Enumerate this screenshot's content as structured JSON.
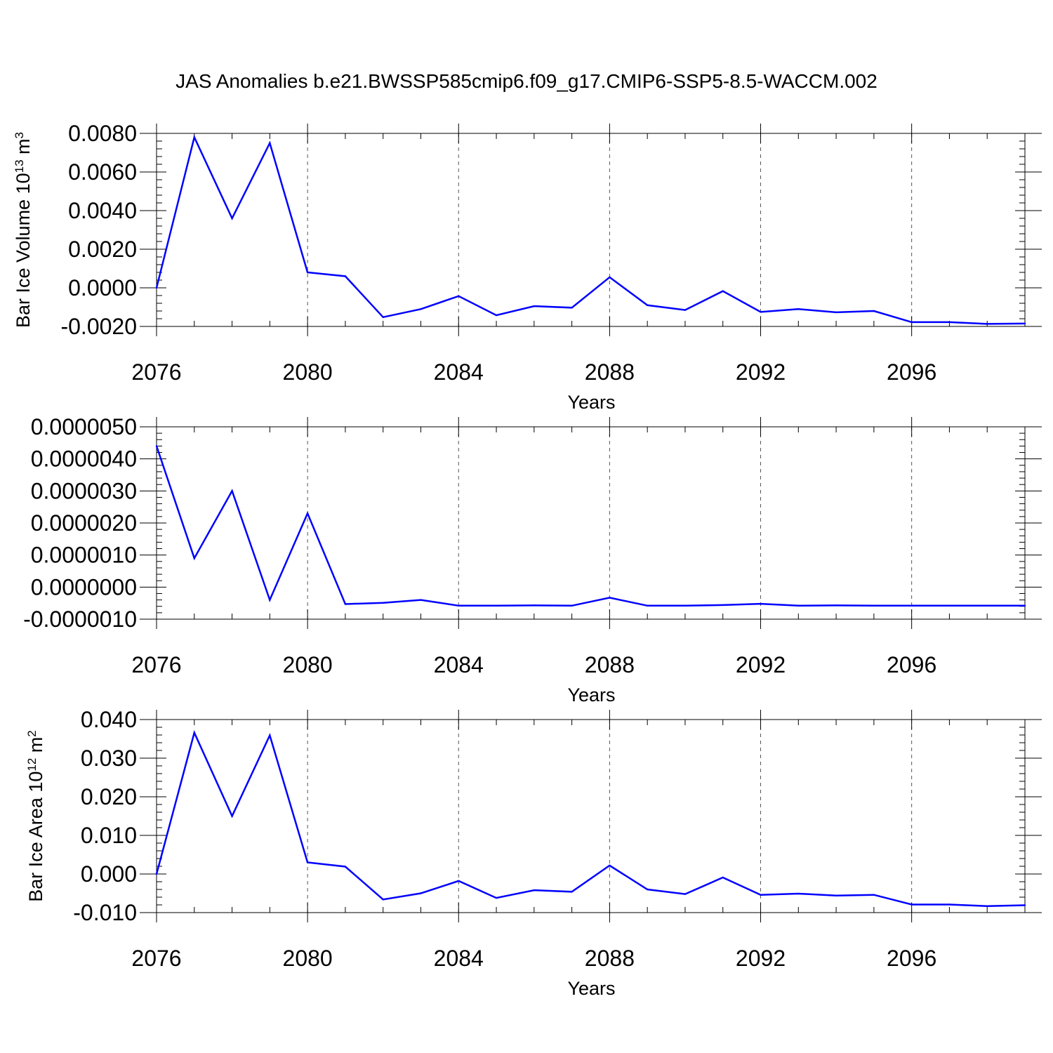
{
  "title": "JAS Anomalies b.e21.BWSSP585cmip6.f09_g17.CMIP6-SSP5-8.5-WACCM.002",
  "chart_data": [
    {
      "type": "line",
      "title": "",
      "xlabel": "Years",
      "ylabel": {
        "text": "Bar Ice Volume 10",
        "exp": "13",
        "unit": " m",
        "unit_exp": "3"
      },
      "xlim": [
        2076,
        2099
      ],
      "ylim": [
        -0.002,
        0.008
      ],
      "grid": "dashed vertical lines at major x ticks",
      "x_ticks": [
        2076,
        2080,
        2084,
        2088,
        2092,
        2096
      ],
      "x_tick_labels": [
        "2076",
        "2080",
        "2084",
        "2088",
        "2092",
        "2096"
      ],
      "y_ticks": [
        -0.002,
        0.0,
        0.002,
        0.004,
        0.006,
        0.008
      ],
      "y_tick_labels": [
        "-0.0020",
        "0.0000",
        "0.0020",
        "0.0040",
        "0.0060",
        "0.0080"
      ],
      "series": [
        {
          "color": "#0000ff",
          "x": [
            2076,
            2077,
            2078,
            2079,
            2080,
            2081,
            2082,
            2083,
            2084,
            2085,
            2086,
            2087,
            2088,
            2089,
            2090,
            2091,
            2092,
            2093,
            2094,
            2095,
            2096,
            2097,
            2098,
            2099
          ],
          "y": [
            0.0,
            0.0078,
            0.0036,
            0.0075,
            0.0008,
            0.0006,
            -0.00152,
            -0.0011,
            -0.00043,
            -0.00142,
            -0.00095,
            -0.00103,
            0.00055,
            -0.0009,
            -0.00115,
            -0.00017,
            -0.00125,
            -0.0011,
            -0.00127,
            -0.0012,
            -0.00178,
            -0.00178,
            -0.00187,
            -0.00185
          ]
        }
      ]
    },
    {
      "type": "line",
      "title": "",
      "xlabel": "Years",
      "ylabel": "",
      "xlim": [
        2076,
        2099
      ],
      "ylim": [
        -1e-06,
        5e-06
      ],
      "grid": "dashed vertical lines at major x ticks",
      "x_ticks": [
        2076,
        2080,
        2084,
        2088,
        2092,
        2096
      ],
      "x_tick_labels": [
        "2076",
        "2080",
        "2084",
        "2088",
        "2092",
        "2096"
      ],
      "y_ticks": [
        -1e-06,
        0.0,
        1e-06,
        2e-06,
        3e-06,
        4e-06,
        5e-06
      ],
      "y_tick_labels": [
        "-0.0000010",
        "0.0000000",
        "0.0000010",
        "0.0000020",
        "0.0000030",
        "0.0000040",
        "0.0000050"
      ],
      "series": [
        {
          "color": "#0000ff",
          "x": [
            2076,
            2077,
            2078,
            2079,
            2080,
            2081,
            2082,
            2083,
            2084,
            2085,
            2086,
            2087,
            2088,
            2089,
            2090,
            2091,
            2092,
            2093,
            2094,
            2095,
            2096,
            2097,
            2098,
            2099
          ],
          "y": [
            4.4e-06,
            9e-07,
            3e-06,
            -4e-07,
            2.3e-06,
            -5.3e-07,
            -4.9e-07,
            -4e-07,
            -5.8e-07,
            -5.8e-07,
            -5.7e-07,
            -5.8e-07,
            -3.3e-07,
            -5.8e-07,
            -5.8e-07,
            -5.6e-07,
            -5.2e-07,
            -5.8e-07,
            -5.7e-07,
            -5.8e-07,
            -5.8e-07,
            -5.8e-07,
            -5.8e-07,
            -5.8e-07
          ]
        }
      ]
    },
    {
      "type": "line",
      "title": "",
      "xlabel": "Years",
      "ylabel": {
        "text": "Bar Ice Area 10",
        "exp": "12",
        "unit": " m",
        "unit_exp": "2"
      },
      "xlim": [
        2076,
        2099
      ],
      "ylim": [
        -0.01,
        0.04
      ],
      "grid": "dashed vertical lines at major x ticks",
      "x_ticks": [
        2076,
        2080,
        2084,
        2088,
        2092,
        2096
      ],
      "x_tick_labels": [
        "2076",
        "2080",
        "2084",
        "2088",
        "2092",
        "2096"
      ],
      "y_ticks": [
        -0.01,
        0.0,
        0.01,
        0.02,
        0.03,
        0.04
      ],
      "y_tick_labels": [
        "-0.010",
        "0.000",
        "0.010",
        "0.020",
        "0.030",
        "0.040"
      ],
      "series": [
        {
          "color": "#0000ff",
          "x": [
            2076,
            2077,
            2078,
            2079,
            2080,
            2081,
            2082,
            2083,
            2084,
            2085,
            2086,
            2087,
            2088,
            2089,
            2090,
            2091,
            2092,
            2093,
            2094,
            2095,
            2096,
            2097,
            2098,
            2099
          ],
          "y": [
            0.0,
            0.0366,
            0.015,
            0.0359,
            0.003,
            0.0019,
            -0.0066,
            -0.005,
            -0.0018,
            -0.0062,
            -0.0042,
            -0.0046,
            0.0022,
            -0.004,
            -0.0052,
            -0.0009,
            -0.0054,
            -0.0051,
            -0.0056,
            -0.0054,
            -0.0079,
            -0.0079,
            -0.0083,
            -0.0081
          ]
        }
      ]
    }
  ]
}
